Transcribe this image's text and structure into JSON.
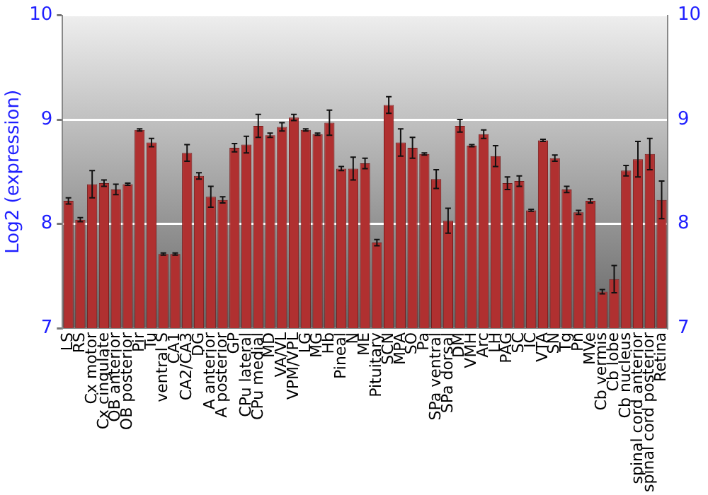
{
  "chart_data": {
    "type": "bar",
    "ylabel": "Log2 (expression)",
    "categories": [
      "LS",
      "RS",
      "Cx motor",
      "Cx cingulate",
      "OB anterior",
      "OB posterior",
      "Pir",
      "Tu",
      "ventral S",
      "CA1",
      "CA2/CA3",
      "DG",
      "A anterior",
      "A posterior",
      "GP",
      "CPu lateral",
      "CPu medial",
      "MD",
      "VA/VL",
      "VPM/VPL",
      "LG",
      "MG",
      "Hb",
      "Pineal",
      "N",
      "ME",
      "Pituitary",
      "SCN",
      "MPA",
      "SO",
      "Pa",
      "SPa ventral",
      "SPa dorsal",
      "DM",
      "VMH",
      "Arc",
      "LH",
      "PAG",
      "SC",
      "IC",
      "VTA",
      "SN",
      "Tg",
      "Pn",
      "MVe",
      "Cb vermis",
      "Cb lobe",
      "Cb nucleus",
      "spinal cord anterior",
      "spinal cord posterior",
      "Retina"
    ],
    "values": [
      8.22,
      8.04,
      8.38,
      8.39,
      8.33,
      8.38,
      8.9,
      8.78,
      7.71,
      7.71,
      8.68,
      8.46,
      8.26,
      8.23,
      8.73,
      8.76,
      8.94,
      8.85,
      8.93,
      9.02,
      8.9,
      8.86,
      8.97,
      8.53,
      8.53,
      8.58,
      7.82,
      9.14,
      8.78,
      8.73,
      8.67,
      8.43,
      8.03,
      8.94,
      8.75,
      8.86,
      8.65,
      8.39,
      8.41,
      8.13,
      8.8,
      8.63,
      8.33,
      8.11,
      8.22,
      7.35,
      7.47,
      8.51,
      8.62,
      8.67,
      8.23
    ],
    "errors": [
      0.03,
      0.02,
      0.13,
      0.03,
      0.05,
      0.01,
      0.01,
      0.04,
      0.01,
      0.01,
      0.08,
      0.03,
      0.1,
      0.03,
      0.04,
      0.08,
      0.11,
      0.02,
      0.04,
      0.03,
      0.01,
      0.01,
      0.12,
      0.02,
      0.11,
      0.05,
      0.03,
      0.08,
      0.13,
      0.1,
      0.01,
      0.09,
      0.12,
      0.06,
      0.01,
      0.04,
      0.1,
      0.06,
      0.05,
      0.01,
      0.01,
      0.03,
      0.03,
      0.02,
      0.02,
      0.02,
      0.13,
      0.05,
      0.17,
      0.15,
      0.18
    ],
    "color": "#b03030",
    "ylim": [
      7,
      10
    ],
    "yticks": [
      7,
      8,
      9,
      10
    ],
    "y2lim": [
      7,
      10
    ],
    "y2ticks": [
      7,
      8,
      9,
      10
    ],
    "grid": "y",
    "legend": false
  }
}
